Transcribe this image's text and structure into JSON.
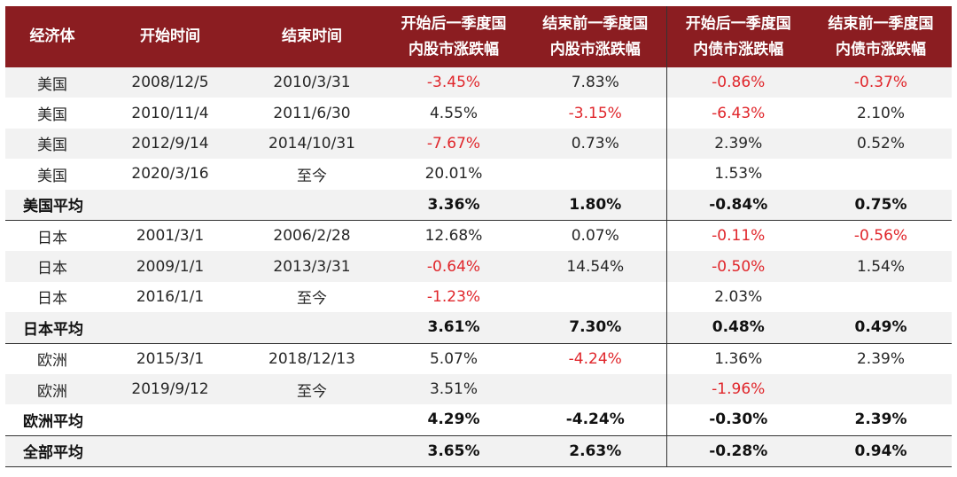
{
  "headers": [
    "经济体",
    "开始时间",
    "结束时间",
    "开始后一季度国\n内股市涨跌幅",
    "结束前一季度国\n内股市涨跌幅",
    "开始后一季度国\n内债市涨跌幅",
    "结束前一季度国\n内债市涨跌幅"
  ],
  "rows": [
    {
      "type": "data",
      "shade": true,
      "sep": false,
      "cells": [
        "美国",
        "2008/12/5",
        "2010/3/31",
        "-3.45%",
        "7.83%",
        "-0.86%",
        "-0.37%"
      ]
    },
    {
      "type": "data",
      "shade": false,
      "sep": false,
      "cells": [
        "美国",
        "2010/11/4",
        "2011/6/30",
        "4.55%",
        "-3.15%",
        "-6.43%",
        "2.10%"
      ]
    },
    {
      "type": "data",
      "shade": true,
      "sep": false,
      "cells": [
        "美国",
        "2012/9/14",
        "2014/10/31",
        "-7.67%",
        "0.73%",
        "2.39%",
        "0.52%"
      ]
    },
    {
      "type": "data",
      "shade": false,
      "sep": false,
      "cells": [
        "美国",
        "2020/3/16",
        "至今",
        "20.01%",
        "",
        "1.53%",
        ""
      ]
    },
    {
      "type": "avg",
      "shade": true,
      "sep": false,
      "cells": [
        "美国平均",
        "",
        "",
        "3.36%",
        "1.80%",
        "-0.84%",
        "0.75%"
      ]
    },
    {
      "type": "data",
      "shade": false,
      "sep": true,
      "cells": [
        "日本",
        "2001/3/1",
        "2006/2/28",
        "12.68%",
        "0.07%",
        "-0.11%",
        "-0.56%"
      ]
    },
    {
      "type": "data",
      "shade": true,
      "sep": false,
      "cells": [
        "日本",
        "2009/1/1",
        "2013/3/31",
        "-0.64%",
        "14.54%",
        "-0.50%",
        "1.54%"
      ]
    },
    {
      "type": "data",
      "shade": false,
      "sep": false,
      "cells": [
        "日本",
        "2016/1/1",
        "至今",
        "-1.23%",
        "",
        "2.03%",
        ""
      ]
    },
    {
      "type": "avg",
      "shade": true,
      "sep": false,
      "cells": [
        "日本平均",
        "",
        "",
        "3.61%",
        "7.30%",
        "0.48%",
        "0.49%"
      ]
    },
    {
      "type": "data",
      "shade": false,
      "sep": true,
      "cells": [
        "欧洲",
        "2015/3/1",
        "2018/12/13",
        "5.07%",
        "-4.24%",
        "1.36%",
        "2.39%"
      ]
    },
    {
      "type": "data",
      "shade": true,
      "sep": false,
      "cells": [
        "欧洲",
        "2019/9/12",
        "至今",
        "3.51%",
        "",
        "-1.96%",
        ""
      ]
    },
    {
      "type": "avg",
      "shade": false,
      "sep": false,
      "cells": [
        "欧洲平均",
        "",
        "",
        "4.29%",
        "-4.24%",
        "-0.30%",
        "2.39%"
      ]
    },
    {
      "type": "avg",
      "shade": true,
      "sep": true,
      "last": true,
      "cells": [
        "全部平均",
        "",
        "",
        "3.65%",
        "2.63%",
        "-0.28%",
        "0.94%"
      ]
    }
  ],
  "colors": {
    "header_bg": "#8b1d21",
    "negative": "#e0262b",
    "shade": "#f2f2f2"
  }
}
